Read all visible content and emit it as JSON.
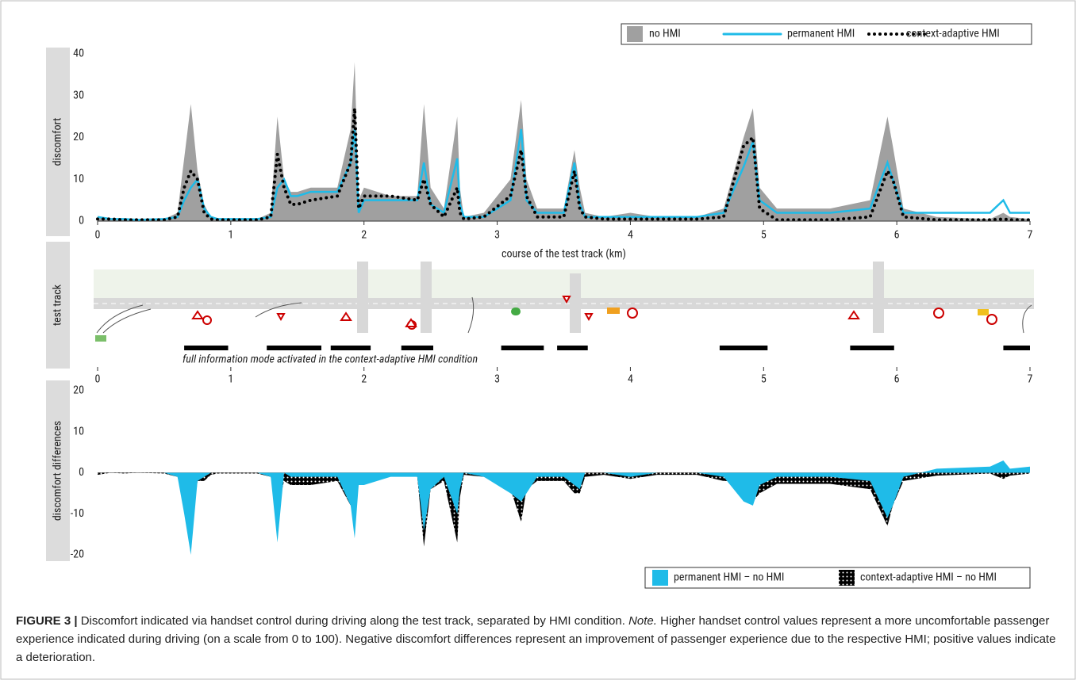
{
  "chart_data": [
    {
      "type": "line",
      "y_label": "discomfort",
      "x_label": "course of the test track (km)",
      "legend": "top-right",
      "x": [
        0,
        0.1,
        0.2,
        0.3,
        0.5,
        0.6,
        0.65,
        0.7,
        0.75,
        0.8,
        0.85,
        0.9,
        1.0,
        1.2,
        1.3,
        1.35,
        1.4,
        1.45,
        1.5,
        1.6,
        1.8,
        1.9,
        1.93,
        1.96,
        2.0,
        2.2,
        2.4,
        2.45,
        2.5,
        2.6,
        2.7,
        2.72,
        2.75,
        2.9,
        3.1,
        3.18,
        3.22,
        3.3,
        3.5,
        3.58,
        3.62,
        3.66,
        3.8,
        4.0,
        4.2,
        4.5,
        4.7,
        4.85,
        4.92,
        4.97,
        5.1,
        5.5,
        5.8,
        5.93,
        5.97,
        6.05,
        6.3,
        6.7,
        6.8,
        6.85,
        7.0
      ],
      "xlim": [
        0,
        7
      ],
      "xticks": [
        0,
        1,
        2,
        3,
        4,
        5,
        6,
        7
      ],
      "ylim": [
        0,
        40
      ],
      "yticks": [
        0,
        10,
        20,
        30,
        40
      ],
      "series": [
        {
          "name": "no HMI",
          "color": "#a0a0a0",
          "style": "area",
          "values": [
            1,
            0.5,
            0.5,
            0.3,
            0.5,
            2,
            15,
            28,
            12,
            4,
            1,
            0.5,
            0.5,
            0.5,
            2,
            25,
            10,
            7,
            7,
            8,
            8,
            22,
            38,
            5,
            8,
            6,
            6,
            28,
            8,
            3,
            25,
            8,
            1,
            2,
            10,
            29,
            10,
            3,
            3,
            17,
            8,
            2,
            1,
            2,
            1,
            1,
            3,
            20,
            27,
            8,
            3,
            3,
            5,
            25,
            18,
            3,
            1,
            0.5,
            2,
            1,
            0.5
          ]
        },
        {
          "name": "permanent HMI",
          "color": "#1fbbe8",
          "style": "line",
          "values": [
            1,
            0.5,
            0.5,
            0.3,
            0.5,
            1,
            5,
            8,
            10,
            3,
            1,
            0.5,
            0.5,
            0.5,
            1,
            8,
            10,
            6,
            6,
            7,
            7,
            14,
            22,
            2,
            5,
            5,
            5,
            14,
            4,
            2,
            15,
            4,
            1,
            1,
            5,
            22,
            5,
            2,
            2,
            14,
            4,
            1,
            1,
            1,
            1,
            1,
            2,
            13,
            19,
            5,
            2,
            2,
            3,
            14,
            10,
            2,
            2,
            2,
            5,
            2,
            2
          ]
        },
        {
          "name": "context-adaptive HMI",
          "color": "#000000",
          "style": "dotted",
          "values": [
            0.5,
            0.5,
            0.3,
            0.3,
            0.3,
            1,
            8,
            12,
            10,
            2,
            0.5,
            0.3,
            0.3,
            0.3,
            1,
            16,
            8,
            4,
            4,
            5,
            6,
            14,
            27,
            3,
            6,
            6,
            5,
            10,
            4,
            1,
            8,
            2,
            0.5,
            1,
            6,
            17,
            6,
            1,
            1,
            12,
            3,
            1,
            0.5,
            0.5,
            0.5,
            0.5,
            1,
            18,
            20,
            3,
            0.3,
            0.3,
            1,
            12,
            10,
            1,
            0.3,
            0.3,
            0.5,
            0.3,
            0.3
          ]
        }
      ]
    },
    {
      "type": "track",
      "y_label": "test track",
      "note": "full information mode activated in the context-adaptive HMI condition",
      "xlim": [
        0,
        7
      ],
      "xticks": [
        0,
        1,
        2,
        3,
        4,
        5,
        6,
        7
      ],
      "color": "#000000",
      "intervals": [
        [
          0.65,
          0.98
        ],
        [
          1.27,
          1.68
        ],
        [
          1.75,
          2.05
        ],
        [
          2.28,
          2.52
        ],
        [
          3.03,
          3.35
        ],
        [
          3.45,
          3.68
        ],
        [
          4.67,
          5.03
        ],
        [
          5.65,
          5.98
        ],
        [
          6.8,
          7.0
        ]
      ]
    },
    {
      "type": "area",
      "y_label": "discomfort differences",
      "legend": "bottom-right",
      "x": [
        0,
        0.1,
        0.2,
        0.3,
        0.5,
        0.6,
        0.65,
        0.7,
        0.75,
        0.8,
        0.85,
        0.9,
        1.0,
        1.2,
        1.3,
        1.35,
        1.4,
        1.45,
        1.5,
        1.6,
        1.8,
        1.9,
        1.93,
        1.96,
        2.0,
        2.2,
        2.4,
        2.45,
        2.5,
        2.6,
        2.7,
        2.72,
        2.75,
        2.9,
        3.1,
        3.18,
        3.22,
        3.3,
        3.5,
        3.58,
        3.62,
        3.66,
        3.8,
        4.0,
        4.2,
        4.5,
        4.7,
        4.85,
        4.92,
        4.97,
        5.1,
        5.5,
        5.8,
        5.93,
        5.97,
        6.05,
        6.3,
        6.7,
        6.8,
        6.85,
        7.0
      ],
      "xlim": [
        0,
        7
      ],
      "ylim": [
        -20,
        20
      ],
      "yticks": [
        -20,
        -10,
        0,
        10,
        20
      ],
      "series": [
        {
          "name": "context-adaptive HMI – no HMI",
          "color": "#000000",
          "pattern": "dots",
          "values": [
            -0.5,
            0,
            -0.2,
            0,
            -0.2,
            -1,
            -7,
            -16,
            -2,
            -2,
            -0.5,
            -0.2,
            -0.2,
            -0.2,
            -1,
            -9,
            -2,
            -3,
            -3,
            -3,
            -2,
            -8,
            -11,
            -2,
            -2,
            0,
            -1,
            -18,
            -4,
            -2,
            -17,
            -6,
            -0.5,
            -1,
            -4,
            -12,
            -4,
            -2,
            -2,
            -5,
            -5,
            -1,
            -0.5,
            -1.5,
            -0.5,
            -0.5,
            -2,
            -2,
            -7,
            -5,
            -2.7,
            -2.7,
            -4,
            -13,
            -8,
            -2,
            -0.7,
            -0.2,
            -1.5,
            -0.7,
            -0.2
          ]
        },
        {
          "name": "permanent HMI – no HMI",
          "color": "#1fbbe8",
          "values": [
            0,
            0,
            0,
            0,
            0,
            -1,
            -10,
            -20,
            -2,
            -1,
            0,
            0,
            0,
            0,
            -1,
            -17,
            0,
            -1,
            -1,
            -1,
            -1,
            -8,
            -16,
            -3,
            -3,
            -1,
            -1,
            -14,
            -4,
            -1,
            -10,
            -4,
            0,
            -1,
            -5,
            -7,
            -5,
            -1,
            -1,
            -3,
            -4,
            0,
            0,
            -1,
            0,
            0,
            -1,
            -7,
            -8,
            -3,
            -1,
            -1,
            -2,
            -11,
            -8,
            -1,
            1,
            1.5,
            3,
            1,
            1.5
          ]
        }
      ]
    }
  ],
  "caption": {
    "label": "FIGURE 3 |",
    "text": " Discomfort indicated via handset control during driving along the test track, separated by HMI condition. ",
    "note": "Note.",
    "text2": " Higher handset control values represent a more uncomfortable passenger experience indicated during driving (on a scale from 0 to 100). Negative discomfort differences represent an improvement of passenger experience due to the respective HMI; positive values indicate a deterioration."
  }
}
